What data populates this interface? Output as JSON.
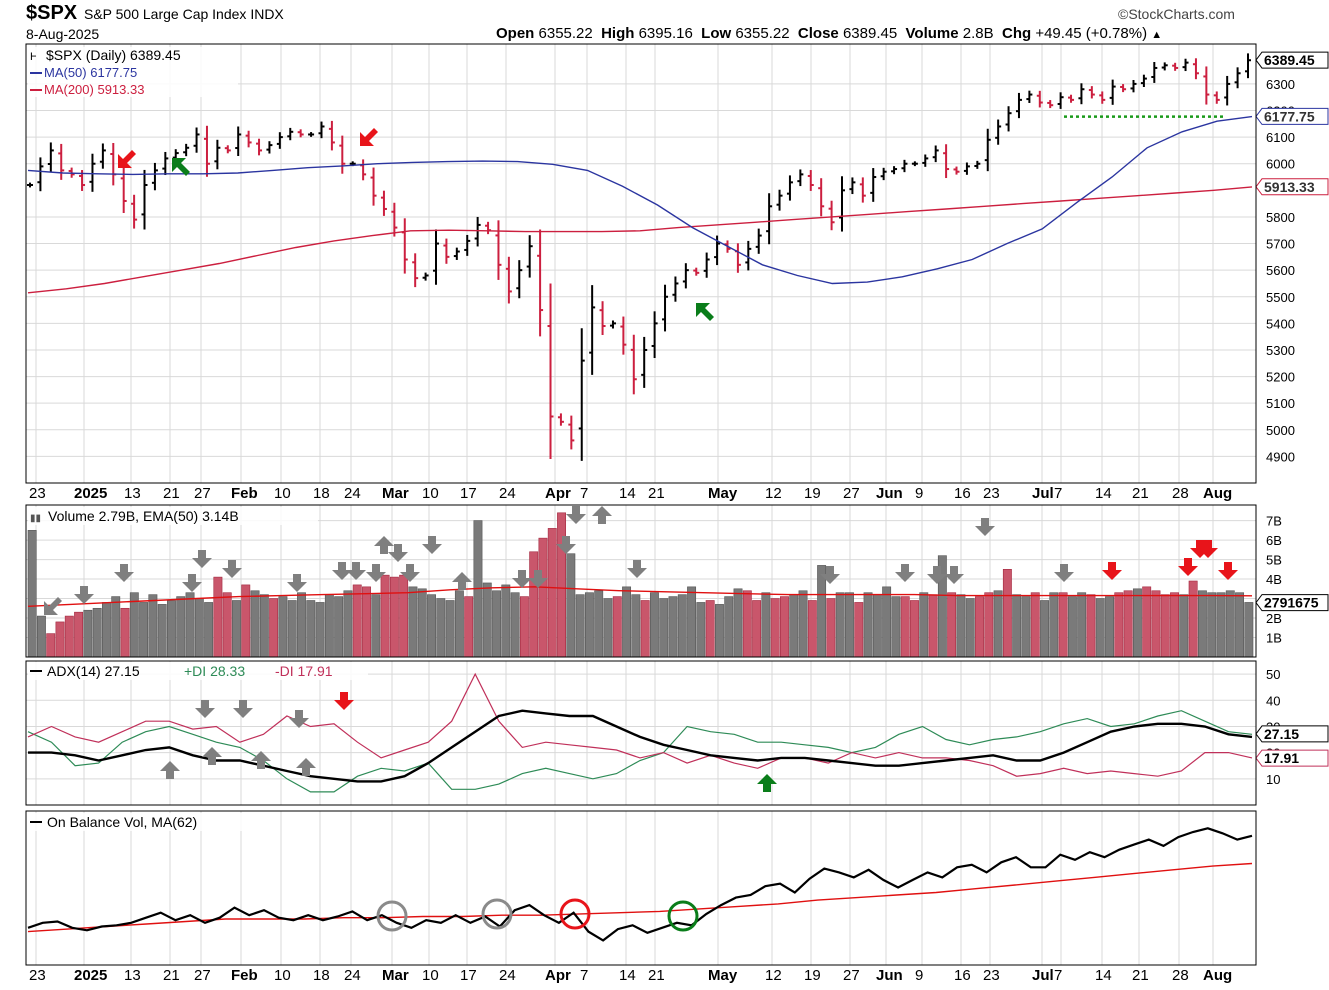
{
  "header": {
    "symbol": "$SPX",
    "name": "S&P 500 Large Cap Index",
    "exchange": "INDX",
    "date": "8-Aug-2025",
    "brand": "©StockCharts.com",
    "open_label": "Open",
    "open": "6355.22",
    "high_label": "High",
    "high": "6395.16",
    "low_label": "Low",
    "low": "6355.22",
    "close_label": "Close",
    "close": "6389.45",
    "volume_label": "Volume",
    "volume": "2.8B",
    "chg_label": "Chg",
    "chg": "+49.45 (+0.78%)",
    "chg_arrow": "▲"
  },
  "colors": {
    "up": "#000000",
    "down": "#cc1f3f",
    "ma50": "#2b35a0",
    "ma200": "#cc1f3f",
    "plusdi": "#2e8b57",
    "minusdi": "#c0305a",
    "green_arrow": "#0a7d1a",
    "red_arrow": "#e8141a",
    "gray_arrow": "#7f7f7f",
    "grid": "#d9d9d9"
  },
  "chart_data": [
    {
      "type": "ohlc",
      "title": "$SPX (Daily) 6389.45",
      "legend": [
        "$SPX (Daily) 6389.45",
        "MA(50) 6177.75",
        "MA(200) 5913.33"
      ],
      "ylim": [
        4800,
        6450
      ],
      "y_ticks": [
        4900,
        5000,
        5100,
        5200,
        5300,
        5400,
        5500,
        5600,
        5700,
        5800,
        6000,
        6100,
        6200,
        6300
      ],
      "x_ticks": [
        "23",
        "2025",
        "13",
        "21",
        "27",
        "Feb",
        "10",
        "18",
        "24",
        "Mar",
        "10",
        "17",
        "24",
        "Apr",
        "7",
        "14",
        "21",
        "May",
        "12",
        "19",
        "27",
        "Jun",
        "9",
        "16",
        "23",
        "Jul",
        "7",
        "14",
        "21",
        "28",
        "Aug"
      ],
      "bold_ticks": [
        "2025",
        "Feb",
        "Mar",
        "Apr",
        "May",
        "Jun",
        "Jul",
        "Aug"
      ],
      "last_close": 6389.45,
      "last_close_label": "6389.45",
      "ma50": 6177.75,
      "ma50_label": "6177.75",
      "ma200": 5913.33,
      "ma200_label": "5913.33",
      "support_line": 6177,
      "close_path": [
        5920,
        5990,
        6050,
        5975,
        5960,
        5920,
        6000,
        6050,
        5960,
        5860,
        5790,
        5920,
        5975,
        6020,
        6040,
        6060,
        6110,
        6000,
        6060,
        6050,
        6110,
        6080,
        6050,
        6070,
        6100,
        6120,
        6110,
        6110,
        6140,
        6080,
        6000,
        6000,
        5960,
        5880,
        5830,
        5760,
        5640,
        5570,
        5580,
        5700,
        5650,
        5670,
        5710,
        5770,
        5750,
        5620,
        5520,
        5600,
        5690,
        5450,
        5050,
        5030,
        4960,
        5260,
        5460,
        5390,
        5400,
        5320,
        5190,
        5300,
        5400,
        5500,
        5550,
        5600,
        5590,
        5640,
        5700,
        5680,
        5620,
        5680,
        5730,
        5840,
        5880,
        5930,
        5960,
        5920,
        5840,
        5780,
        5900,
        5930,
        5880,
        5950,
        5970,
        5980,
        6000,
        6000,
        6020,
        6050,
        5980,
        5970,
        5990,
        6000,
        6090,
        6140,
        6190,
        6240,
        6260,
        6230,
        6220,
        6250,
        6240,
        6280,
        6260,
        6240,
        6290,
        6280,
        6300,
        6320,
        6360,
        6370,
        6360,
        6380,
        6340,
        6260,
        6240,
        6300,
        6340,
        6389
      ],
      "ma50_path": [
        5975,
        5965,
        5962,
        5960,
        5962,
        5962,
        5965,
        5975,
        5985,
        5992,
        6000,
        6005,
        6008,
        6010,
        6008,
        5998,
        5975,
        5915,
        5845,
        5760,
        5690,
        5620,
        5580,
        5550,
        5555,
        5575,
        5605,
        5640,
        5700,
        5755,
        5855,
        5950,
        6060,
        6120,
        6160,
        6177
      ],
      "ma200_path": [
        5515,
        5530,
        5550,
        5575,
        5600,
        5625,
        5655,
        5685,
        5710,
        5730,
        5748,
        5750,
        5748,
        5745,
        5745,
        5745,
        5748,
        5760,
        5770,
        5780,
        5790,
        5800,
        5810,
        5820,
        5830,
        5840,
        5850,
        5860,
        5870,
        5880,
        5890,
        5900,
        5913
      ]
    },
    {
      "type": "bar",
      "title": "Volume 2.79B, EMA(50) 3.14B",
      "legend": [
        "Volume 2.79B, EMA(50) 3.14B"
      ],
      "ylim": [
        0,
        7.8
      ],
      "y_ticks_values": [
        1,
        2,
        3,
        4,
        5,
        6,
        7
      ],
      "y_ticks": [
        "1B",
        "2B",
        "3B",
        "4B",
        "5B",
        "6B",
        "7B"
      ],
      "last_value": "2791675",
      "units": "billions of shares",
      "volume_values": [
        6.5,
        2.1,
        1.2,
        1.8,
        2.1,
        2.3,
        2.4,
        2.5,
        2.8,
        3.1,
        2.5,
        3.3,
        2.8,
        3.2,
        2.7,
        2.9,
        3.1,
        3.3,
        3.0,
        2.8,
        4.1,
        3.3,
        2.9,
        3.7,
        3.4,
        3.2,
        3.0,
        3.1,
        2.9,
        3.3,
        2.9,
        2.8,
        3.2,
        3.1,
        3.4,
        3.7,
        3.6,
        3.2,
        4.2,
        4.1,
        4.2,
        3.6,
        3.5,
        3.2,
        3.0,
        2.9,
        3.4,
        3.1,
        7.0,
        3.8,
        3.4,
        3.7,
        3.3,
        3.1,
        5.4,
        6.1,
        6.6,
        7.4,
        5.3,
        3.2,
        3.3,
        3.4,
        3.0,
        3.1,
        3.6,
        3.2,
        2.9,
        3.3,
        3.0,
        3.1,
        3.2,
        3.6,
        2.8,
        2.9,
        2.7,
        3.1,
        3.5,
        3.4,
        2.9,
        3.3,
        3.0,
        3.1,
        3.2,
        3.4,
        2.9,
        4.7,
        3.0,
        3.3,
        3.3,
        2.8,
        3.3,
        3.2,
        3.6,
        3.1,
        3.1,
        2.9,
        3.3,
        3.2,
        5.2,
        3.3,
        3.2,
        3.0,
        3.1,
        3.3,
        3.4,
        4.5,
        3.2,
        3.1,
        3.3,
        2.9,
        3.3,
        3.3,
        3.1,
        3.3,
        3.2,
        3.0,
        3.1,
        3.3,
        3.4,
        3.5,
        3.6,
        3.4,
        3.2,
        3.3,
        3.2,
        3.9,
        3.4,
        3.3,
        3.3,
        3.4,
        3.3,
        2.8
      ],
      "volume_down_days": [
        2,
        3,
        4,
        5,
        10,
        20,
        21,
        23,
        26,
        35,
        36,
        38,
        39,
        40,
        47,
        53,
        54,
        55,
        56,
        57,
        63,
        66,
        73,
        77,
        78,
        80,
        81,
        84,
        86,
        89,
        94,
        95,
        97,
        99,
        102,
        103,
        105,
        108,
        111,
        114,
        117,
        118,
        120,
        121,
        122,
        123,
        125
      ],
      "ema50_path": [
        2.6,
        2.7,
        2.8,
        2.9,
        3.0,
        3.1,
        3.15,
        3.2,
        3.25,
        3.3,
        3.45,
        3.55,
        3.6,
        3.5,
        3.4,
        3.35,
        3.3,
        3.25,
        3.2,
        3.2,
        3.2,
        3.2,
        3.15,
        3.15,
        3.15,
        3.15,
        3.15,
        3.15,
        3.15,
        3.14
      ]
    },
    {
      "type": "line",
      "title": "ADX(14) 27.15 +DI 28.33 -DI 17.91",
      "legend": [
        "ADX(14) 27.15",
        "+DI 28.33",
        "-DI 17.91"
      ],
      "ylim": [
        0,
        55
      ],
      "y_ticks_values": [
        10,
        20,
        30,
        40,
        50
      ],
      "y_ticks": [
        "10",
        "20",
        "30",
        "40",
        "50"
      ],
      "adx_last": 27.15,
      "adx_label": "27.15",
      "minus_di_last": 17.91,
      "minus_di_label": "17.91",
      "adx": [
        20,
        20,
        19,
        17,
        19,
        21,
        22,
        19,
        17,
        17,
        15,
        13,
        11,
        10,
        9,
        9,
        11,
        16,
        22,
        28,
        34,
        36,
        35,
        34,
        34,
        30,
        26,
        23,
        21,
        19,
        18,
        17,
        18,
        18,
        17,
        16,
        15,
        15,
        16,
        17,
        18,
        19,
        17,
        17,
        20,
        24,
        28,
        30,
        31,
        31,
        30,
        27,
        26
      ],
      "plus_di": [
        28,
        24,
        15,
        16,
        24,
        28,
        30,
        27,
        24,
        22,
        17,
        10,
        5,
        5,
        11,
        14,
        13,
        16,
        6,
        6,
        8,
        12,
        14,
        12,
        10,
        12,
        17,
        20,
        30,
        28,
        27,
        24,
        24,
        23,
        22,
        20,
        22,
        27,
        30,
        25,
        23,
        25,
        26,
        28,
        31,
        33,
        30,
        31,
        34,
        36,
        32,
        28,
        27
      ],
      "minus_di": [
        26,
        30,
        26,
        24,
        28,
        32,
        32,
        29,
        30,
        24,
        27,
        34,
        30,
        31,
        24,
        18,
        21,
        24,
        32,
        50,
        32,
        22,
        24,
        23,
        22,
        21,
        18,
        20,
        16,
        19,
        16,
        14,
        18,
        18,
        16,
        20,
        18,
        20,
        18,
        18,
        17,
        15,
        11,
        12,
        14,
        12,
        13,
        12,
        11,
        13,
        20,
        20,
        18
      ]
    },
    {
      "type": "line",
      "title": "On Balance Vol, MA(62)",
      "legend": [
        "On Balance Vol, MA(62)"
      ],
      "ylim": [
        0,
        100
      ],
      "units": "relative",
      "obv": [
        20,
        24,
        25,
        20,
        18,
        21,
        22,
        24,
        28,
        32,
        26,
        30,
        24,
        28,
        36,
        30,
        34,
        28,
        26,
        30,
        26,
        29,
        33,
        26,
        30,
        24,
        20,
        26,
        24,
        30,
        24,
        29,
        21,
        34,
        38,
        30,
        24,
        32,
        17,
        10,
        19,
        22,
        16,
        20,
        24,
        22,
        31,
        38,
        44,
        46,
        53,
        55,
        48,
        59,
        67,
        64,
        60,
        66,
        58,
        52,
        58,
        64,
        60,
        68,
        70,
        64,
        72,
        76,
        68,
        68,
        78,
        74,
        80,
        76,
        82,
        86,
        90,
        85,
        92,
        96,
        99,
        95,
        90,
        93
      ],
      "obv_ma62": [
        17,
        19,
        21,
        23,
        25,
        27,
        27,
        27,
        28,
        28,
        29,
        29,
        30,
        30,
        31,
        32,
        33,
        35,
        37,
        39,
        42,
        44,
        46,
        48,
        51,
        54,
        57,
        60,
        63,
        66,
        69,
        71
      ]
    }
  ],
  "panels": {
    "price_legend": "$SPX (Daily) 6389.45",
    "ma50_legend": "MA(50) 6177.75",
    "ma200_legend": "MA(200) 5913.33",
    "volume_legend": "Volume 2.79B, EMA(50) 3.14B",
    "adx_legend": "ADX(14) 27.15",
    "plusdi_legend": "+DI 28.33",
    "minusdi_legend": "-DI 17.91",
    "obv_legend": "On Balance Vol, MA(62)"
  }
}
